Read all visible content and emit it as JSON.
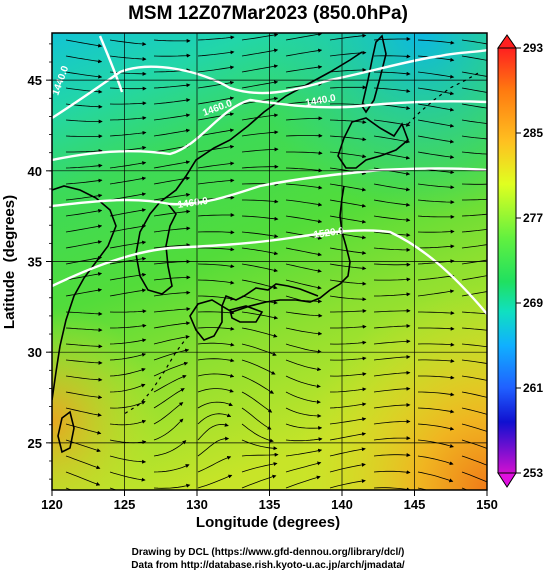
{
  "title": "MSM 12Z07Mar2023 (850.0hPa)",
  "xlabel": "Longitude (degrees)",
  "ylabel": "Latitude  (degrees)",
  "x_ticks": [
    "120",
    "125",
    "130",
    "135",
    "140",
    "145",
    "150"
  ],
  "y_ticks": [
    "25",
    "30",
    "35",
    "40",
    "45"
  ],
  "x_range": [
    120,
    150
  ],
  "y_range": [
    22.4,
    47.6
  ],
  "colorbar": {
    "ticks": [
      "293",
      "285",
      "277",
      "269",
      "261",
      "253"
    ],
    "range": [
      253,
      293
    ]
  },
  "contours": {
    "labels": [
      "1440.0",
      "1460.0",
      "1440.0",
      "1460.0",
      "1520.0"
    ]
  },
  "credits": {
    "line1": "Drawing by DCL (https://www.gfd-dennou.org/library/dcl/)",
    "line2": "Data from http://database.rish.kyoto-u.ac.jp/arch/jmadata/"
  },
  "colors": {
    "warm": "#f08a1a",
    "mid": "#40d840",
    "cool": "#10c8d8",
    "contour": "#ffffff"
  }
}
